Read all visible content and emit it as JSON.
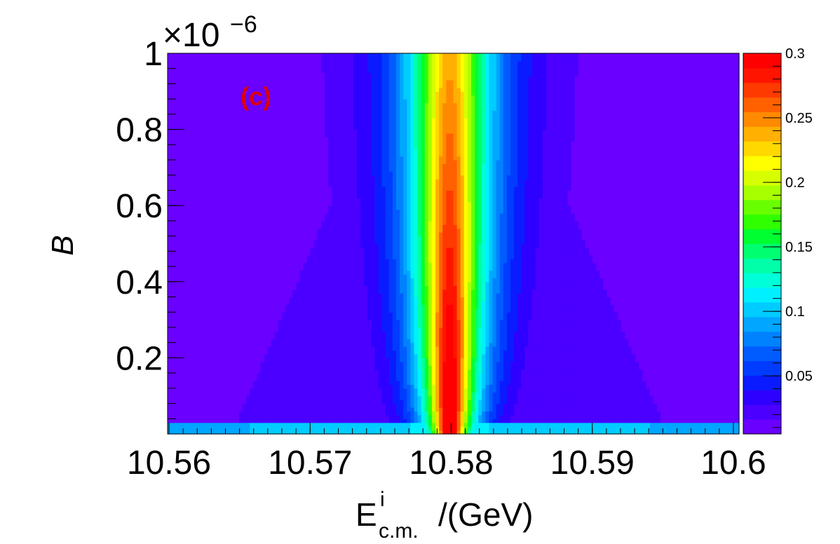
{
  "chart_data": {
    "type": "heatmap",
    "panel_label": "(c)",
    "xlabel_main": "E",
    "xlabel_sup": "i",
    "xlabel_sub": "c.m.",
    "xlabel_tail": "/(GeV)",
    "ylabel": "B",
    "y_exponent_base": "×10",
    "y_exponent_power": "−6",
    "xlim": [
      10.5599,
      10.6004
    ],
    "ylim": [
      0.0,
      1.0
    ],
    "zlim": [
      0.005,
      0.3
    ],
    "x_ticks": [
      "10.56",
      "10.57",
      "10.58",
      "10.59",
      "10.6"
    ],
    "x_tick_values": [
      10.56,
      10.57,
      10.58,
      10.59,
      10.6
    ],
    "y_ticks": [
      "0.2",
      "0.4",
      "0.6",
      "0.8",
      "1"
    ],
    "y_tick_values": [
      0.2,
      0.4,
      0.6,
      0.8,
      1.0
    ],
    "z_ticks": [
      "0.05",
      "0.1",
      "0.15",
      "0.2",
      "0.25",
      "0.3"
    ],
    "z_tick_values": [
      0.05,
      0.1,
      0.15,
      0.2,
      0.25,
      0.3
    ],
    "peak_center": 10.5799,
    "colors": {
      "palette": [
        "#6a00ff",
        "#4b00ff",
        "#2e00ff",
        "#0a1cff",
        "#003cff",
        "#005cff",
        "#0082ff",
        "#00a6ff",
        "#00ccff",
        "#00f0ff",
        "#00ffd8",
        "#00ffa8",
        "#00ff70",
        "#00ff30",
        "#30ff00",
        "#6aff00",
        "#a8ff00",
        "#d8ff00",
        "#ffff00",
        "#ffd800",
        "#ffb000",
        "#ff8a00",
        "#ff6000",
        "#ff3a00",
        "#ff1400",
        "#ff0000"
      ],
      "panel_label": "#dd0000"
    }
  }
}
